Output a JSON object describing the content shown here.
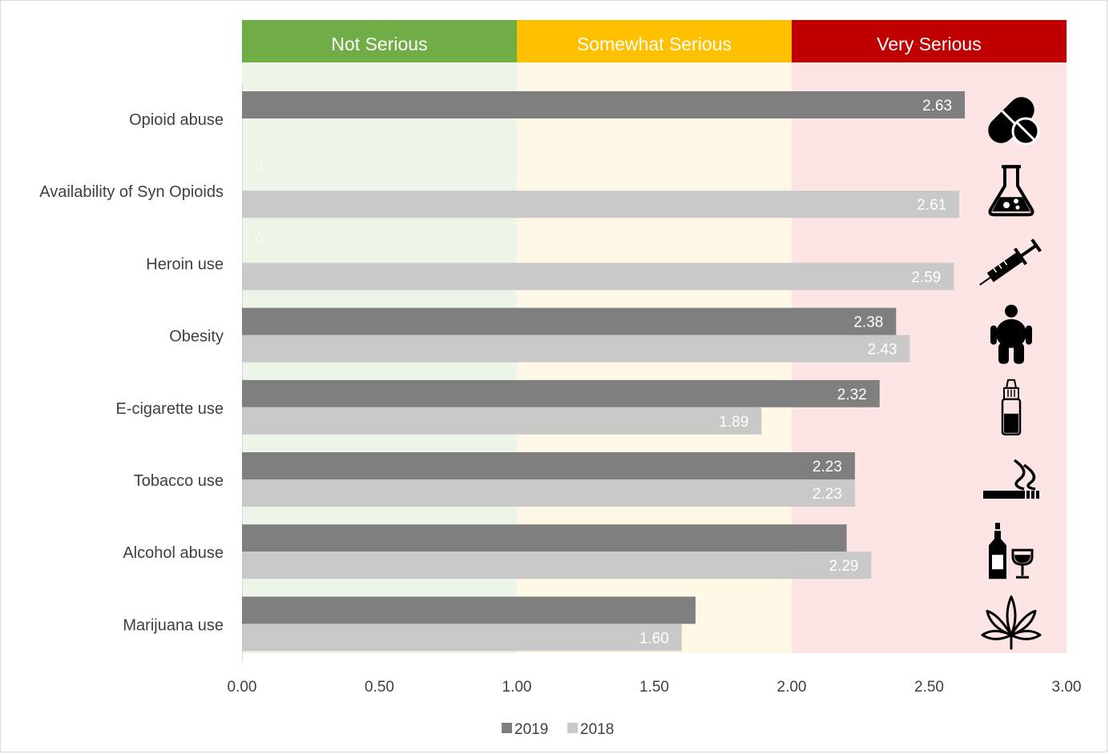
{
  "chart_data": {
    "type": "bar",
    "orientation": "horizontal",
    "categories": [
      "Opioid abuse",
      "Availability of Syn Opioids",
      "Heroin use",
      "Obesity",
      "E-cigarette use",
      "Tobacco use",
      "Alcohol abuse",
      "Marijuana use"
    ],
    "series": [
      {
        "name": "2019",
        "color": "#7f7f7f",
        "values": [
          2.63,
          0,
          0,
          2.38,
          2.32,
          2.23,
          2.2,
          1.65
        ]
      },
      {
        "name": "2018",
        "color": "#c9c9c9",
        "values": [
          null,
          2.61,
          2.59,
          2.43,
          1.89,
          2.23,
          2.29,
          1.6
        ]
      }
    ],
    "data_labels": {
      "2019": [
        "2.63",
        "0",
        "0",
        "2.38",
        "2.32",
        "2.23",
        "",
        ""
      ],
      "2018": [
        "",
        "2.61",
        "2.59",
        "2.43",
        "1.89",
        "2.23",
        "2.29",
        "1.60"
      ]
    },
    "xlim": [
      0,
      3
    ],
    "x_ticks": [
      "0.00",
      "0.50",
      "1.00",
      "1.50",
      "2.00",
      "2.50",
      "3.00"
    ],
    "bands": [
      {
        "label": "Not Serious",
        "from": 0,
        "to": 1,
        "header_color": "#70ad47",
        "fill_color": "#edf5e9"
      },
      {
        "label": "Somewhat Serious",
        "from": 1,
        "to": 2,
        "header_color": "#ffc000",
        "fill_color": "#fff8e6"
      },
      {
        "label": "Very Serious",
        "from": 2,
        "to": 3,
        "header_color": "#c00000",
        "fill_color": "#fde5e5"
      }
    ],
    "row_icons": [
      "pills-icon",
      "flask-icon",
      "syringe-icon",
      "obese-person-icon",
      "e-liquid-bottle-icon",
      "cigarette-icon",
      "wine-bottle-glass-icon",
      "cannabis-leaf-icon"
    ],
    "legend_position": "bottom",
    "grid": false
  }
}
